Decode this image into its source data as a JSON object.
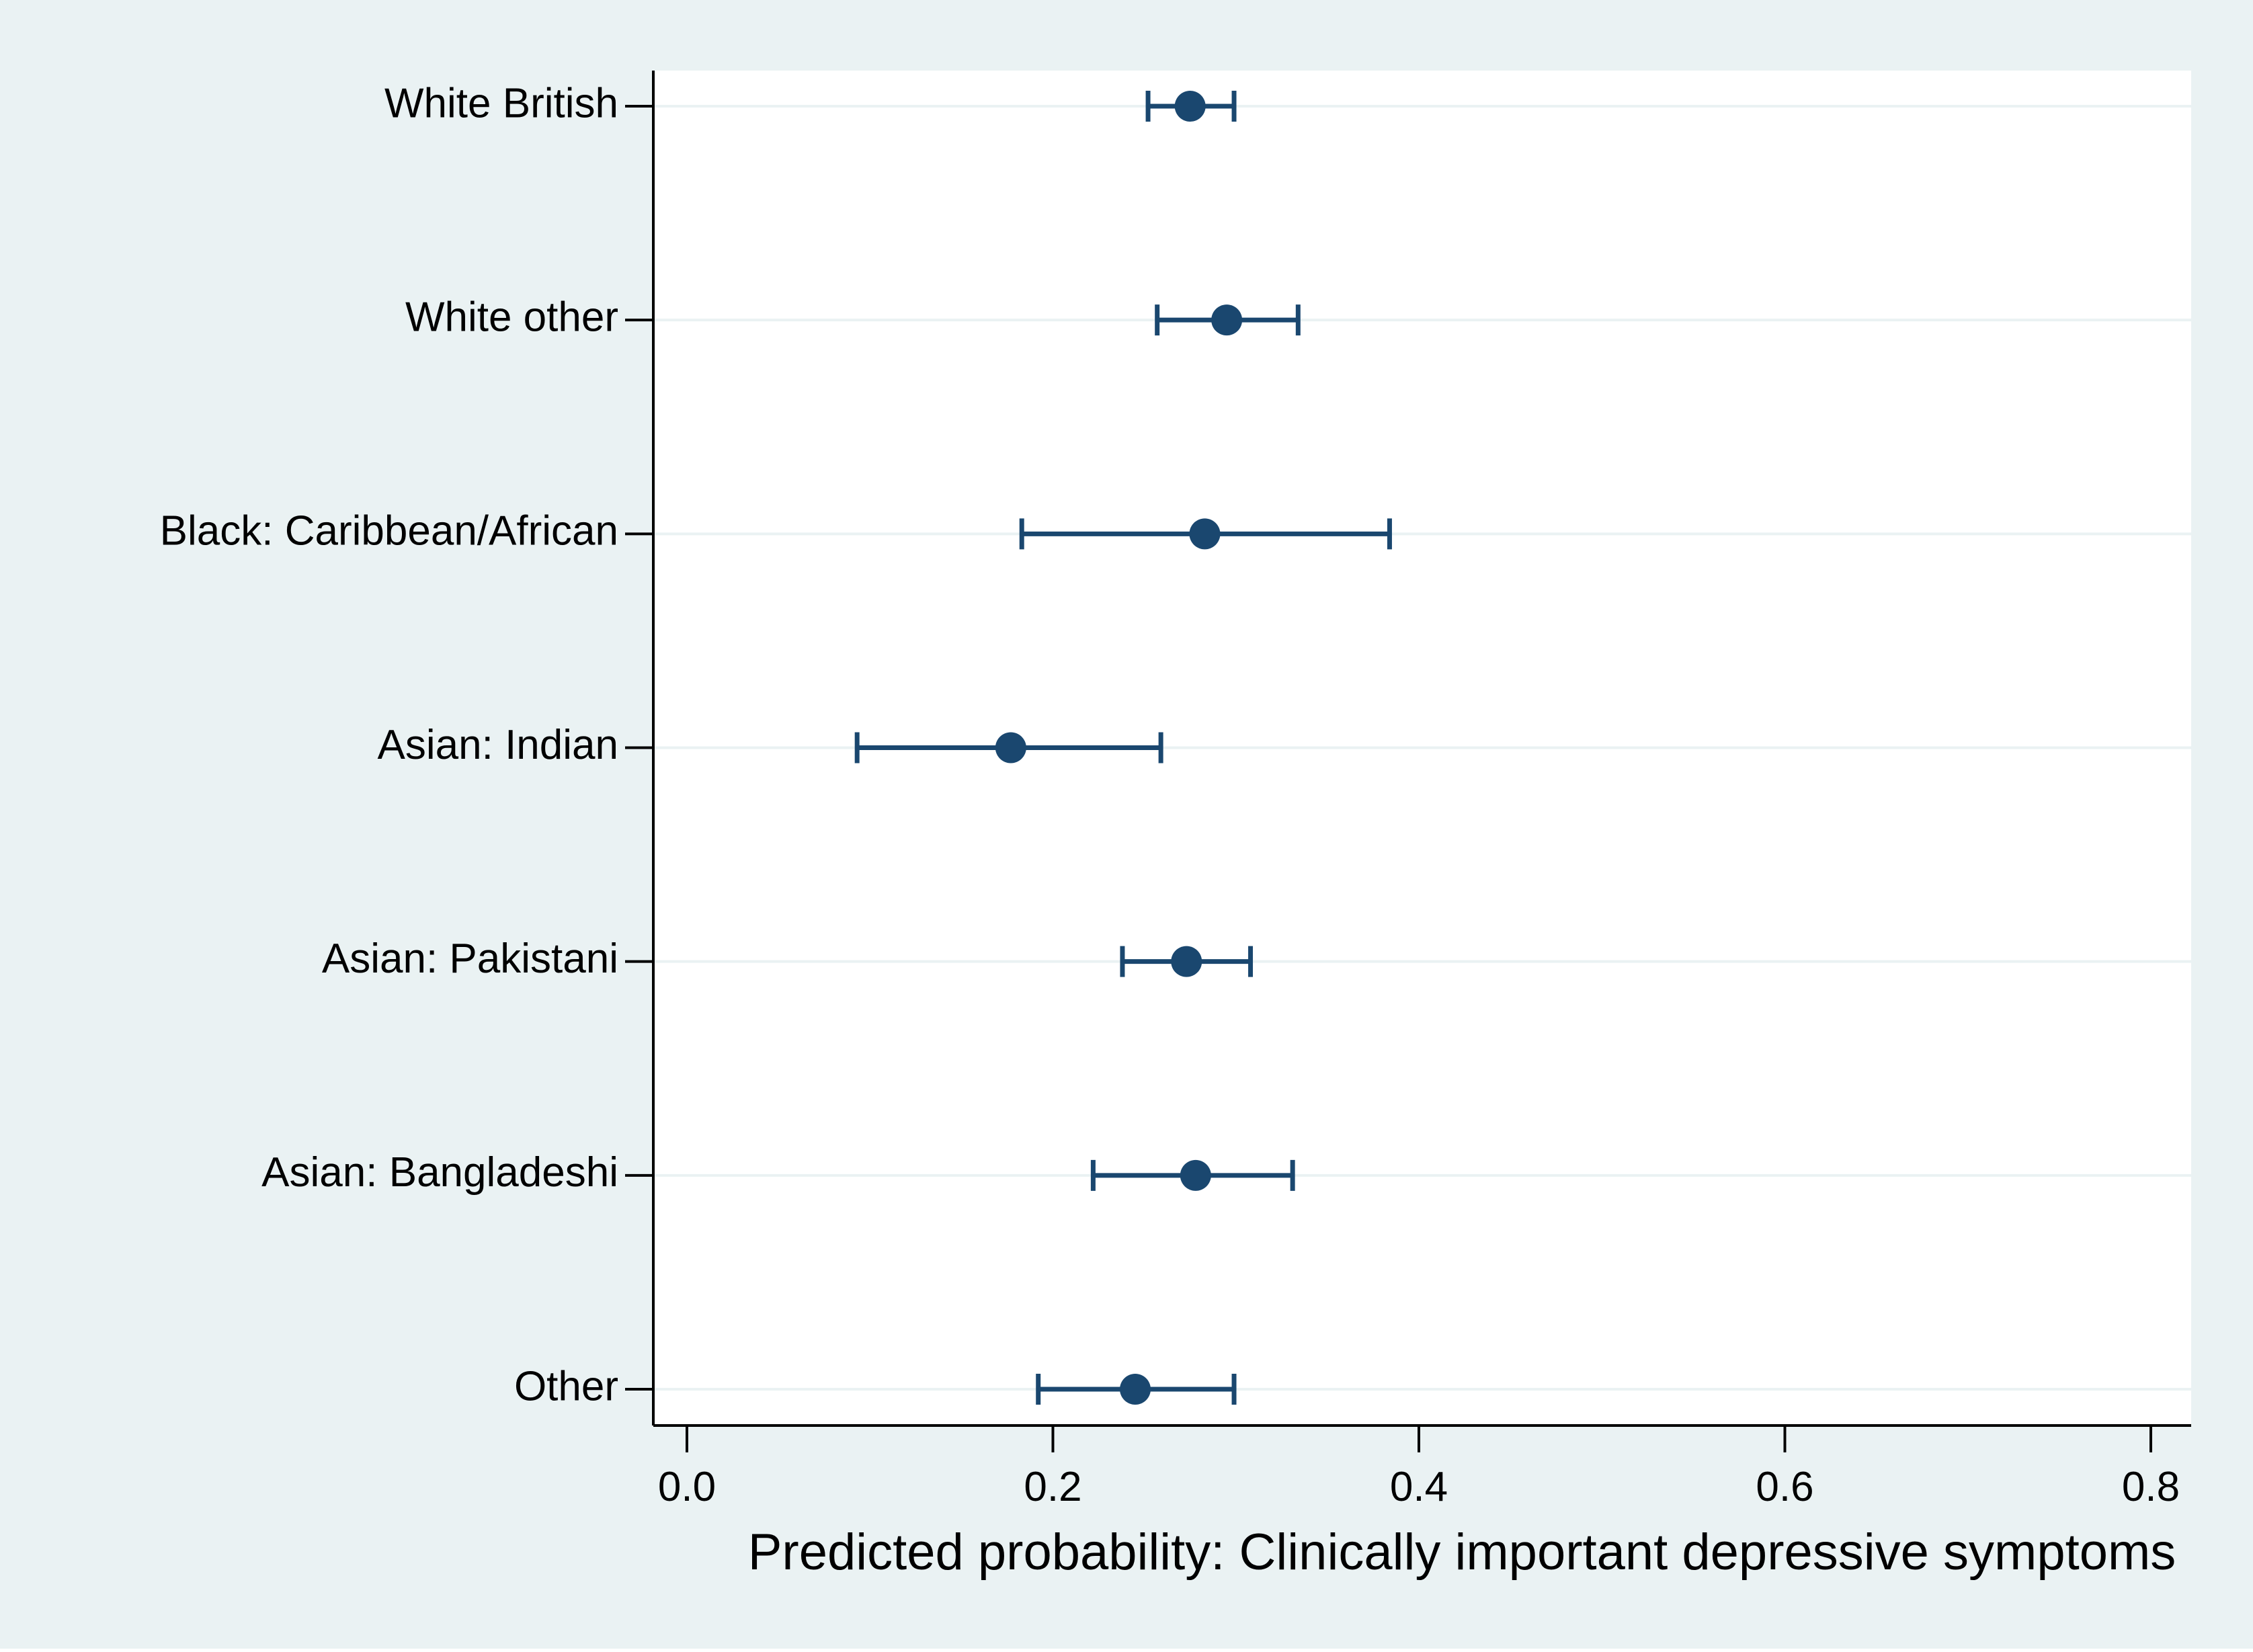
{
  "colors": {
    "outer_background": "#eaf2f3",
    "plot_background": "#ffffff",
    "gridline": "#eaf2f3",
    "axis": "#000000",
    "marker": "#1a476f",
    "error_bar": "#1a476f",
    "text": "#000000"
  },
  "chart_data": {
    "type": "scatter",
    "subtype": "dot-and-whisker",
    "orientation": "horizontal",
    "title": "",
    "xlabel": "Predicted probability: Clinically important depressive symptoms",
    "ylabel": "",
    "xlim": [
      0.0,
      0.8
    ],
    "x_ticks": [
      0.0,
      0.2,
      0.4,
      0.6,
      0.8
    ],
    "x_tick_labels": [
      "0.0",
      "0.2",
      "0.4",
      "0.6",
      "0.8"
    ],
    "grid": "horizontal gridlines at categories",
    "categories": [
      "White British",
      "White other",
      "Black: Caribbean/African",
      "Asian: Indian",
      "Asian: Pakistani",
      "Asian: Bangladeshi",
      "Other"
    ],
    "series": [
      {
        "name": "Predicted probability",
        "values": [
          0.275,
          0.295,
          0.283,
          0.177,
          0.273,
          0.278,
          0.245
        ],
        "ci_lower": [
          0.252,
          0.257,
          0.183,
          0.093,
          0.238,
          0.222,
          0.192
        ],
        "ci_upper": [
          0.299,
          0.334,
          0.384,
          0.259,
          0.308,
          0.331,
          0.299
        ]
      }
    ]
  }
}
